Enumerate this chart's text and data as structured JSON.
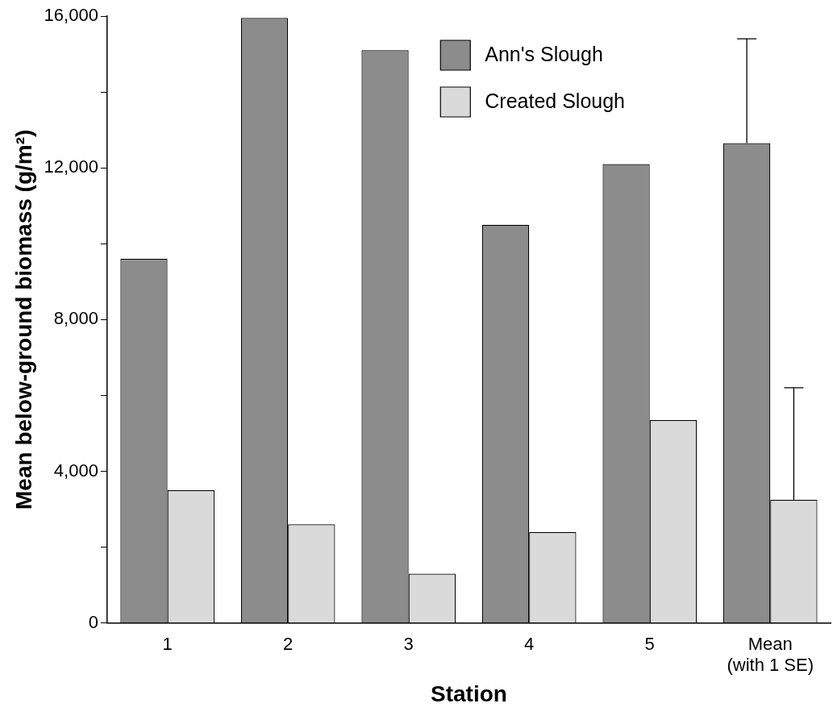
{
  "chart_data": {
    "type": "bar",
    "xlabel": "Station",
    "ylabel": "Mean below-ground biomass (g/m²)",
    "categories": [
      "1",
      "2",
      "3",
      "4",
      "5",
      "Mean\n(with 1 SE)"
    ],
    "series": [
      {
        "name": "Ann's Slough",
        "color": "#8c8c8c",
        "values": [
          9600,
          15950,
          15100,
          10500,
          12100,
          12650
        ],
        "errors": [
          null,
          null,
          null,
          null,
          null,
          [
            12650,
            15400
          ]
        ]
      },
      {
        "name": "Created Slough",
        "color": "#dadada",
        "values": [
          3500,
          2600,
          1300,
          2400,
          5350,
          3250
        ],
        "errors": [
          null,
          null,
          null,
          null,
          null,
          [
            3250,
            6200
          ]
        ]
      }
    ],
    "ylim": [
      0,
      16000
    ],
    "yticks": [
      0,
      {
        "value": 2000,
        "label": null
      },
      {
        "value": 4000,
        "label": "4,000"
      },
      {
        "value": 6000,
        "label": null
      },
      {
        "value": 8000,
        "label": "8,000"
      },
      {
        "value": 10000,
        "label": null
      },
      {
        "value": 12000,
        "label": "12,000"
      },
      {
        "value": 14000,
        "label": null
      },
      {
        "value": 16000,
        "label": "16,000"
      }
    ],
    "grid": false,
    "legend": "top right"
  }
}
